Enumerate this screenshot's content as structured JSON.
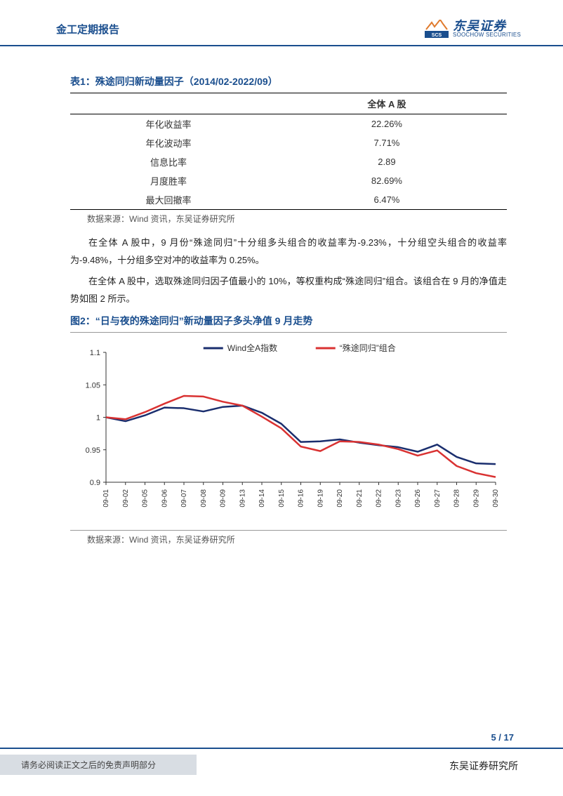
{
  "header": {
    "title": "金工定期报告",
    "logo_cn": "东吴证券",
    "logo_en": "SOOCHOW SECURITIES",
    "logo_mark": "SCS"
  },
  "table1": {
    "title": "表1：殊途同归新动量因子（2014/02-2022/09）",
    "header_col": "全体 A 股",
    "rows": [
      {
        "label": "年化收益率",
        "value": "22.26%"
      },
      {
        "label": "年化波动率",
        "value": "7.71%"
      },
      {
        "label": "信息比率",
        "value": "2.89"
      },
      {
        "label": "月度胜率",
        "value": "82.69%"
      },
      {
        "label": "最大回撤率",
        "value": "6.47%"
      }
    ],
    "source": "数据来源：Wind 资讯，东吴证券研究所"
  },
  "para1": "在全体 A 股中，9 月份“殊途同归”十分组多头组合的收益率为-9.23%，十分组空头组合的收益率为-9.48%，十分组多空对冲的收益率为 0.25%。",
  "para2": "在全体 A 股中，选取殊途同归因子值最小的 10%，等权重构成“殊途同归”组合。该组合在 9 月的净值走势如图 2 所示。",
  "figure2": {
    "title": "图2：“日与夜的殊途同归”新动量因子多头净值 9 月走势",
    "source": "数据来源：Wind 资讯，东吴证券研究所",
    "chart": {
      "type": "line",
      "ylim": [
        0.9,
        1.1
      ],
      "yticks": [
        0.9,
        0.95,
        1.0,
        1.05,
        1.1
      ],
      "categories": [
        "09-01",
        "09-02",
        "09-05",
        "09-06",
        "09-07",
        "09-08",
        "09-09",
        "09-13",
        "09-14",
        "09-15",
        "09-16",
        "09-19",
        "09-20",
        "09-21",
        "09-22",
        "09-23",
        "09-26",
        "09-27",
        "09-28",
        "09-29",
        "09-30"
      ],
      "legend": [
        {
          "label": "Wind全A指数",
          "color": "#1a2e6e"
        },
        {
          "label": "“殊途同归”组合",
          "color": "#d93232"
        }
      ],
      "series": [
        {
          "name": "windA",
          "color": "#1a2e6e",
          "width": 2.5,
          "values": [
            1.0,
            0.994,
            1.003,
            1.015,
            1.014,
            1.009,
            1.016,
            1.018,
            1.007,
            0.99,
            0.962,
            0.963,
            0.966,
            0.961,
            0.957,
            0.954,
            0.947,
            0.958,
            0.939,
            0.929,
            0.928
          ]
        },
        {
          "name": "portfolio",
          "color": "#d93232",
          "width": 2.5,
          "values": [
            1.0,
            0.997,
            1.008,
            1.021,
            1.033,
            1.032,
            1.024,
            1.018,
            1.001,
            0.983,
            0.955,
            0.948,
            0.963,
            0.962,
            0.958,
            0.951,
            0.941,
            0.949,
            0.925,
            0.914,
            0.908
          ]
        }
      ],
      "background_color": "#ffffff",
      "axis_color": "#333333",
      "tick_fontsize": 10,
      "label_fontsize": 11
    }
  },
  "footer": {
    "page": "5 / 17",
    "disclaimer": "请务必阅读正文之后的免责声明部分",
    "org": "东吴证券研究所"
  }
}
